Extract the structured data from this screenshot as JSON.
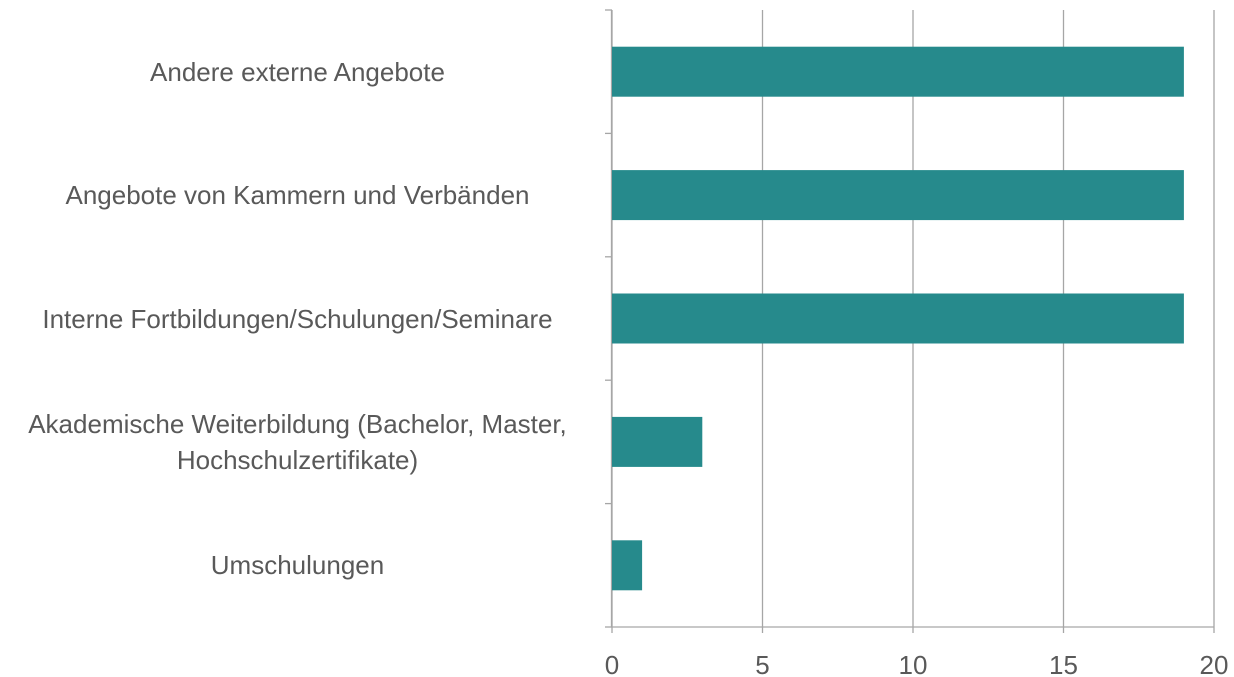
{
  "chart_data": {
    "type": "bar",
    "orientation": "horizontal",
    "categories": [
      "Andere externe Angebote",
      "Angebote von Kammern und Verbänden",
      "Interne Fortbildungen/Schulungen/Seminare",
      "Akademische Weiterbildung (Bachelor, Master, Hochschulzertifikate)",
      "Umschulungen"
    ],
    "values": [
      19,
      19,
      19,
      3,
      1
    ],
    "color": "#268a8c",
    "xlim": [
      0,
      20
    ],
    "xticks": [
      0,
      5,
      10,
      15,
      20
    ],
    "grid": true
  }
}
